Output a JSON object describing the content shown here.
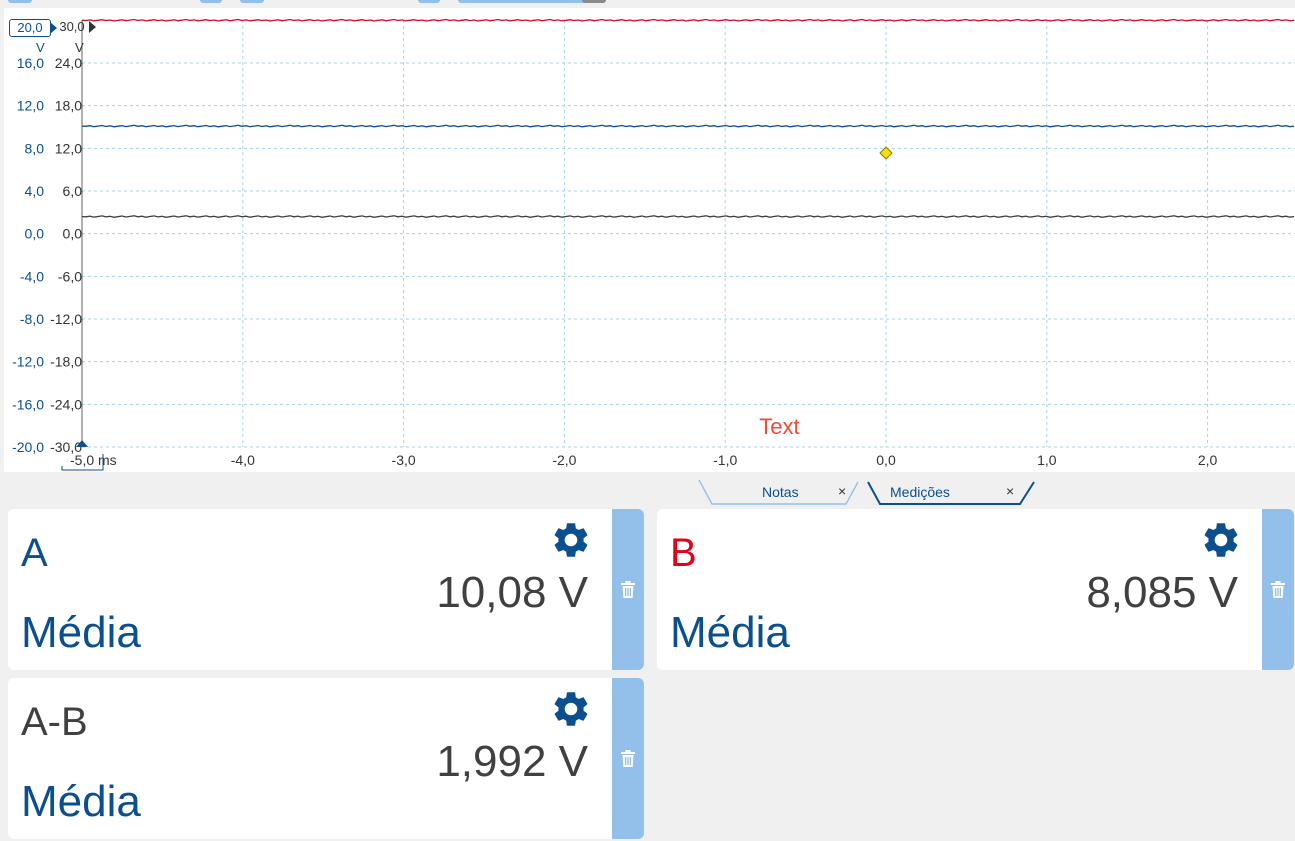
{
  "scope": {
    "channel_a": {
      "range_label": "20,0",
      "unit": "V",
      "ticks": [
        "16,0",
        "12,0",
        "8,0",
        "4,0",
        "0,0",
        "-4,0",
        "-8,0",
        "-12,0",
        "-16,0",
        "-20,0"
      ],
      "color": "#0b4f8f"
    },
    "channel_b": {
      "range_label": "30,0",
      "unit": "V",
      "ticks": [
        "24,0",
        "18,0",
        "12,0",
        "6,0",
        "0,0",
        "-6,0",
        "-12,0",
        "-18,0",
        "-24,0",
        "-30,0"
      ],
      "color": "#333333"
    },
    "time_axis": {
      "ticks": [
        "-5,0",
        "-4,0",
        "-3,0",
        "-2,0",
        "-1,0",
        "0,0",
        "1,0",
        "2,0"
      ],
      "unit": "ms"
    },
    "annotation": "Text",
    "traces": [
      {
        "channel": "A",
        "level_volts_on_a_scale": 20.0,
        "color": "#c8102e"
      },
      {
        "channel": "A",
        "level_volts_on_a_scale": 10.08,
        "color": "#0b4f8f"
      },
      {
        "channel": "B",
        "level_volts_on_a_scale": 1.6,
        "color": "#404040"
      }
    ],
    "trigger_marker_color": "#f3e000"
  },
  "tabs": [
    {
      "label": "Notas",
      "close": "×"
    },
    {
      "label": "Medições",
      "close": "×",
      "active": true
    }
  ],
  "measurements": [
    {
      "channel": "A",
      "channel_color": "#0b4f8f",
      "value": "10,08 V",
      "stat": "Média"
    },
    {
      "channel": "B",
      "channel_color": "#e2001a",
      "value": "8,085 V",
      "stat": "Média"
    },
    {
      "channel": "A-B",
      "channel_color": "#404040",
      "value": "1,992 V",
      "stat": "Média"
    }
  ],
  "icons": {
    "settings": "gear-icon",
    "delete": "trash-icon"
  }
}
